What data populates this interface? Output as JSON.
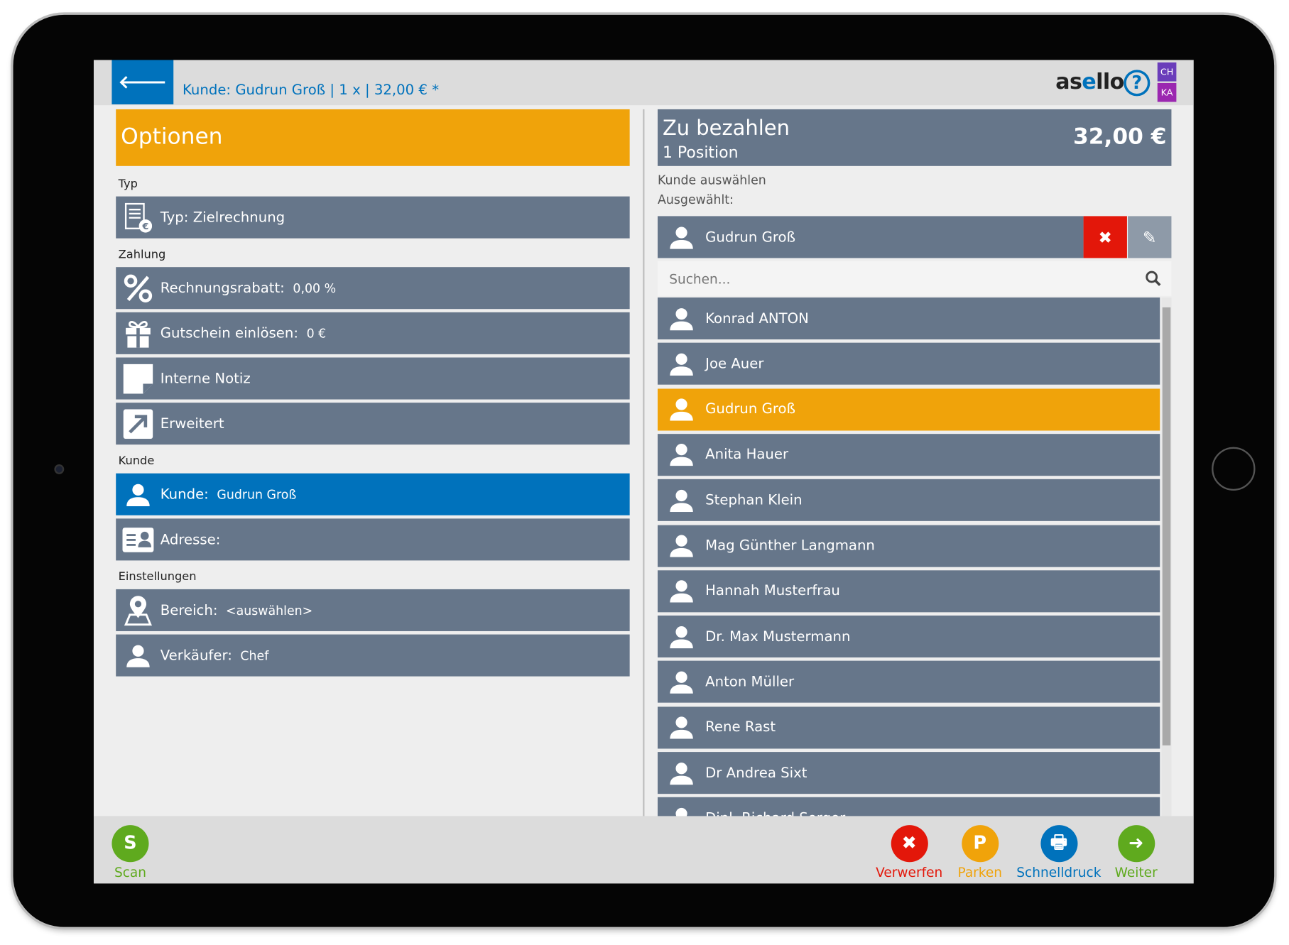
{
  "header": {
    "title": "Kunde: Gudrun Groß | 1 x | 32,00 € *",
    "logo": "asello",
    "help": "?",
    "badges": [
      "CH",
      "KA"
    ],
    "badge_colors": [
      "#6a3dba",
      "#9b27b0"
    ]
  },
  "colors": {
    "accent": "#0072bc",
    "orange": "#f0a30a",
    "row": "#66768a",
    "red": "#e3170a",
    "green": "#5faa1e"
  },
  "left": {
    "title": "Optionen",
    "sections": [
      {
        "label": "Typ",
        "rows": [
          {
            "icon": "invoice-euro-icon",
            "label": "Typ: Zielrechnung",
            "value": ""
          }
        ]
      },
      {
        "label": "Zahlung",
        "rows": [
          {
            "icon": "percent-icon",
            "label": "Rechnungsrabatt:",
            "value": "0,00 %"
          },
          {
            "icon": "gift-icon",
            "label": "Gutschein einlösen:",
            "value": "0 €"
          },
          {
            "icon": "note-icon",
            "label": "Interne Notiz",
            "value": ""
          },
          {
            "icon": "expand-arrow-icon",
            "label": "Erweitert",
            "value": ""
          }
        ]
      },
      {
        "label": "Kunde",
        "rows": [
          {
            "icon": "person-icon",
            "label": "Kunde:",
            "value": "Gudrun Groß",
            "active": true
          },
          {
            "icon": "address-card-icon",
            "label": "Adresse:",
            "value": ""
          }
        ]
      },
      {
        "label": "Einstellungen",
        "rows": [
          {
            "icon": "map-pin-icon",
            "label": "Bereich:",
            "value": "<auswählen>"
          },
          {
            "icon": "person-icon",
            "label": "Verkäufer:",
            "value": "Chef"
          }
        ]
      }
    ]
  },
  "right": {
    "title": "Zu bezahlen",
    "subtitle": "1 Position",
    "total": "32,00 €",
    "choose_label": "Kunde auswählen",
    "selected_label": "Ausgewählt:",
    "selected": "Gudrun Groß",
    "search_placeholder": "Suchen...",
    "customers": [
      "Konrad ANTON",
      "Joe Auer",
      "Gudrun Groß",
      "Anita Hauer",
      "Stephan Klein",
      "Mag Günther Langmann",
      "Hannah Musterfrau",
      "Dr. Max Mustermann",
      "Anton Müller",
      "Rene Rast",
      "Dr Andrea Sixt",
      "Dipl. Richard Sorger"
    ],
    "highlighted_index": 2
  },
  "footer": {
    "scan": {
      "label": "Scan",
      "glyph": "S",
      "color": "#5faa1e"
    },
    "buttons": [
      {
        "label": "Verwerfen",
        "glyph": "✖",
        "color": "#e3170a",
        "name": "discard"
      },
      {
        "label": "Parken",
        "glyph": "P",
        "color": "#f0a30a",
        "name": "park"
      },
      {
        "label": "Schnelldruck",
        "glyph": "🖶",
        "color": "#0072bc",
        "name": "quick-print"
      },
      {
        "label": "Weiter",
        "glyph": "➜",
        "color": "#5faa1e",
        "name": "next"
      }
    ]
  }
}
